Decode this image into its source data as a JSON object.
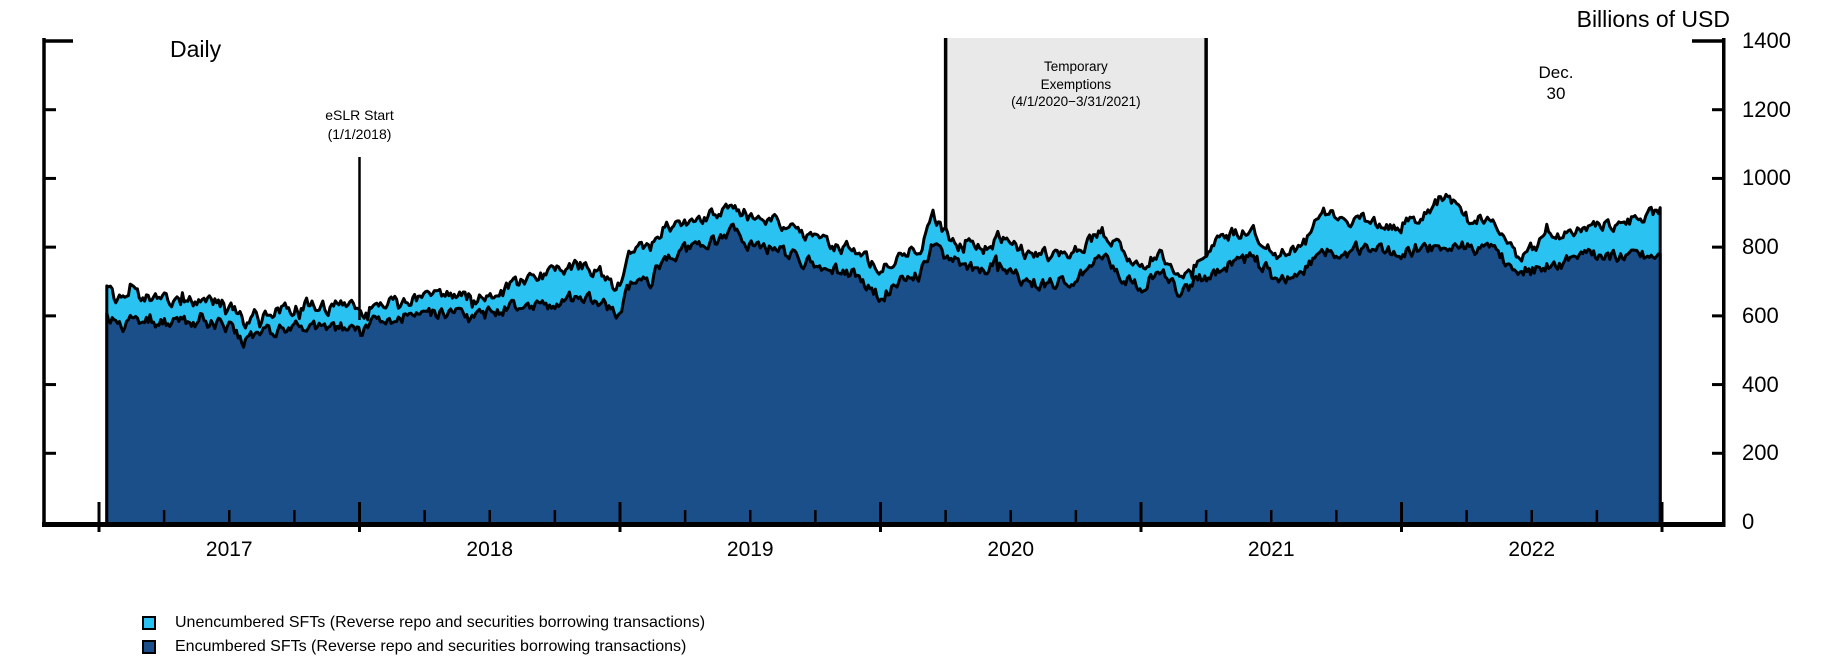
{
  "header": {
    "frequency_label": "Daily",
    "units_label": "Billions of USD"
  },
  "annotations": {
    "eslr": {
      "line1": "eSLR Start",
      "line2": "(1/1/2018)",
      "x_year": 2018.0
    },
    "exemptions": {
      "line1": "Temporary",
      "line2": "Exemptions",
      "line3": "(4/1/2020−3/31/2021)"
    },
    "last_point": {
      "line1": "Dec.",
      "line2": "30"
    }
  },
  "legend": [
    {
      "label": "Unencumbered SFTs (Reverse repo and securities borrowing transactions)",
      "color": "#29C2F1"
    },
    {
      "label": "Encumbered SFTs (Reverse repo and securities borrowing transactions)",
      "color": "#1B4F8A"
    }
  ],
  "chart_data": {
    "type": "area",
    "stacked": true,
    "title": "",
    "xlabel": "",
    "ylabel": "Billions of USD",
    "ylim": [
      0,
      1400
    ],
    "ytick_values": [
      0,
      200,
      400,
      600,
      800,
      1000,
      1200,
      1400
    ],
    "xtick_years": [
      2017,
      2018,
      2019,
      2020,
      2021,
      2022
    ],
    "x_range_years": [
      2017.03,
      2023.0
    ],
    "exemption_band": {
      "start_year": 2020.25,
      "end_year": 2021.25,
      "fill": "#E9E9E9"
    },
    "eslr_line_year": 2018.0,
    "x": [
      2017.03,
      2017.06,
      2017.12,
      2017.2,
      2017.3,
      2017.38,
      2017.5,
      2017.56,
      2017.62,
      2017.7,
      2017.8,
      2017.88,
      2017.96,
      2018.0,
      2018.06,
      2018.15,
      2018.25,
      2018.35,
      2018.45,
      2018.55,
      2018.62,
      2018.7,
      2018.78,
      2018.85,
      2018.92,
      2018.99,
      2019.04,
      2019.12,
      2019.17,
      2019.25,
      2019.35,
      2019.44,
      2019.5,
      2019.6,
      2019.7,
      2019.8,
      2019.9,
      2020.0,
      2020.08,
      2020.15,
      2020.2,
      2020.25,
      2020.3,
      2020.4,
      2020.46,
      2020.55,
      2020.65,
      2020.75,
      2020.85,
      2020.92,
      2021.0,
      2021.08,
      2021.15,
      2021.22,
      2021.3,
      2021.42,
      2021.52,
      2021.6,
      2021.7,
      2021.78,
      2021.85,
      2021.93,
      2022.0,
      2022.1,
      2022.17,
      2022.25,
      2022.35,
      2022.45,
      2022.55,
      2022.65,
      2022.73,
      2022.82,
      2022.9,
      2022.97,
      2023.0
    ],
    "series": [
      {
        "name": "Encumbered SFTs (Reverse repo and securities borrowing transactions)",
        "color": "#1B4F8A",
        "values": [
          600,
          578,
          585,
          588,
          575,
          582,
          570,
          528,
          548,
          560,
          568,
          562,
          570,
          545,
          588,
          598,
          600,
          608,
          600,
          615,
          638,
          630,
          645,
          655,
          648,
          597,
          690,
          700,
          774,
          790,
          820,
          862,
          810,
          790,
          760,
          735,
          726,
          656,
          700,
          720,
          800,
          770,
          756,
          740,
          762,
          700,
          690,
          710,
          774,
          720,
          690,
          720,
          668,
          700,
          735,
          785,
          697,
          710,
          794,
          780,
          800,
          788,
          780,
          800,
          812,
          800,
          790,
          726,
          742,
          760,
          778,
          768,
          780,
          790,
          794
        ]
      },
      {
        "name": "Unencumbered SFTs (Reverse repo and securities borrowing transactions)",
        "color": "#29C2F1",
        "values": [
          80,
          70,
          70,
          64,
          65,
          66,
          65,
          50,
          57,
          58,
          64,
          63,
          68,
          52,
          57,
          52,
          55,
          52,
          55,
          57,
          62,
          88,
          95,
          90,
          80,
          79,
          95,
          100,
          79,
          80,
          75,
          59,
          80,
          90,
          80,
          70,
          69,
          79,
          90,
          80,
          90,
          70,
          49,
          55,
          71,
          85,
          85,
          80,
          73,
          70,
          54,
          70,
          29,
          70,
          80,
          77,
          77,
          90,
          109,
          95,
          90,
          74,
          85,
          95,
          146,
          90,
          98,
          40,
          78,
          90,
          90,
          90,
          102,
          110,
          127
        ]
      }
    ]
  }
}
